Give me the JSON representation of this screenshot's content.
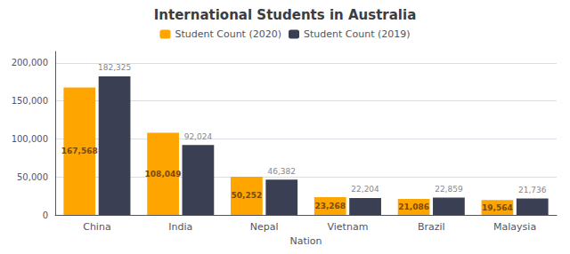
{
  "chart_data": {
    "type": "bar",
    "title": "International Students in Australia",
    "xlabel": "Nation",
    "categories": [
      "China",
      "India",
      "Nepal",
      "Vietnam",
      "Brazil",
      "Malaysia"
    ],
    "series": [
      {
        "name": "Student Count (2020)",
        "color": "#FFA500",
        "values": [
          167568,
          108049,
          50252,
          23268,
          21086,
          19564
        ],
        "value_labels": [
          "167,568",
          "108,049",
          "50,252",
          "23,268",
          "21,086",
          "19,564"
        ]
      },
      {
        "name": "Student Count (2019)",
        "color": "#3B3F54",
        "values": [
          182325,
          92024,
          46382,
          22204,
          22859,
          21736
        ],
        "value_labels": [
          "182,325",
          "92,024",
          "46,382",
          "22,204",
          "22,859",
          "21,736"
        ]
      }
    ],
    "ylim": [
      0,
      215000
    ],
    "yticks": [
      0,
      {
        "value": 50000,
        "label": "50,000"
      },
      {
        "value": 100000,
        "label": "100,000"
      },
      {
        "value": 150000,
        "label": "150,000"
      },
      {
        "value": 200000,
        "label": "200,000"
      }
    ],
    "grid": true,
    "legend": "top",
    "data_labels": true
  }
}
